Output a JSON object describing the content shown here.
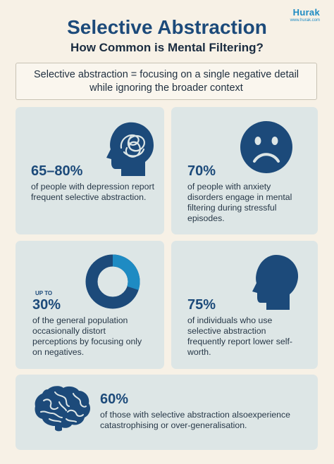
{
  "brand": {
    "name": "Hurak",
    "url": "www.hurak.com"
  },
  "header": {
    "title": "Selective Abstraction",
    "subtitle": "How Common is Mental Filtering?"
  },
  "definition": "Selective abstraction = focusing on a single negative detail while ignoring the broader context",
  "cards": [
    {
      "stat": "65–80%",
      "desc": "of people with depression report frequent selective abstraction.",
      "icon": "head-tangled-thoughts-icon"
    },
    {
      "stat": "70%",
      "desc": "of people with anxiety disorders engage in mental filtering during stressful episodes.",
      "icon": "sad-face-icon"
    },
    {
      "prefix": "UP TO",
      "stat": "30%",
      "desc": "of the general population occasionally distort perceptions by focusing only on negatives.",
      "icon": "donut-chart-icon",
      "donut_fraction": 0.3
    },
    {
      "stat": "75%",
      "desc": "of individuals who use selective abstraction frequently report lower self-worth.",
      "icon": "head-profile-icon"
    },
    {
      "stat": "60%",
      "desc": "of those with selective abstraction alsoexperience catastrophising or over-generalisation.",
      "icon": "brain-icon"
    }
  ],
  "colors": {
    "background": "#f7f1e6",
    "card": "#dde6e6",
    "navy": "#1c4a7a",
    "accent": "#1e8bc3"
  }
}
